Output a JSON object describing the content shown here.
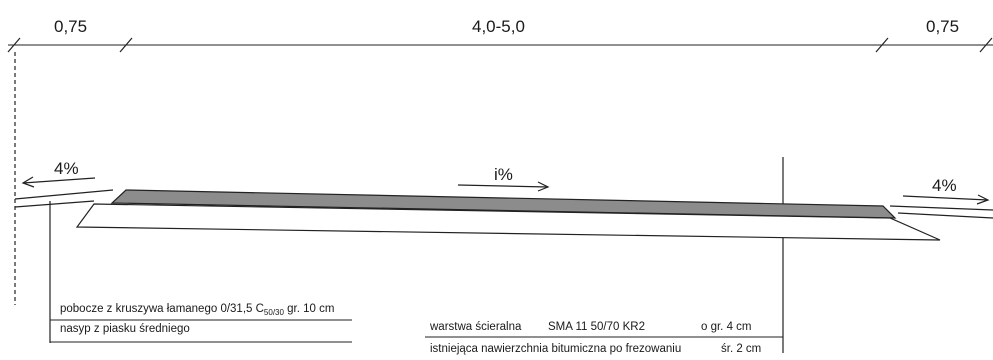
{
  "dimensions": {
    "left_shoulder": "0,75",
    "carriageway": "4,0-5,0",
    "right_shoulder": "0,75"
  },
  "slopes": {
    "left": "4%",
    "center": "i%",
    "right": "4%"
  },
  "notes_left": {
    "line1_main": "pobocze z kruszywa łamanego 0/31,5 C",
    "line1_sub": "50/30",
    "line1_tail": " gr. 10 cm",
    "line2": "nasyp z piasku średniego"
  },
  "notes_right": {
    "layer1_name": "warstwa ścieralna",
    "layer1_spec": "SMA 11  50/70 KR2",
    "layer1_thickness": "o gr. 4 cm",
    "layer2_name": "istniejąca nawierzchnia bitumiczna po frezowaniu",
    "layer2_thickness": "śr. 2 cm"
  },
  "colors": {
    "line": "#222222",
    "asphalt_fill": "#8c8c8c",
    "background": "#ffffff"
  }
}
